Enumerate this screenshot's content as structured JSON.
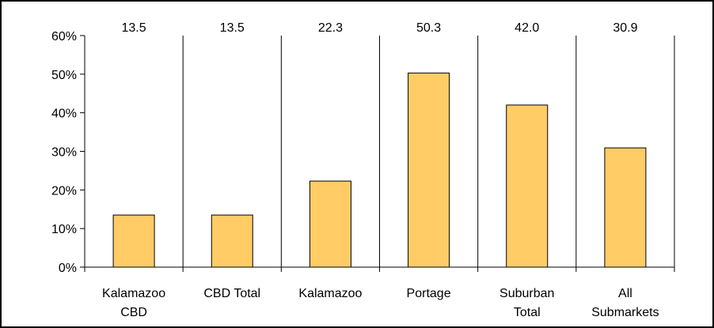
{
  "chart_data": {
    "type": "bar",
    "categories": [
      [
        "Kalamazoo",
        "CBD"
      ],
      [
        "CBD Total"
      ],
      [
        "Kalamazoo"
      ],
      [
        "Portage"
      ],
      [
        "Suburban",
        "Total"
      ],
      [
        "All",
        "Submarkets"
      ]
    ],
    "values": [
      13.5,
      13.5,
      22.3,
      50.3,
      42.0,
      30.9
    ],
    "value_labels": [
      "13.5",
      "13.5",
      "22.3",
      "50.3",
      "42.0",
      "30.9"
    ],
    "yticks": [
      "0%",
      "10%",
      "20%",
      "30%",
      "40%",
      "50%",
      "60%"
    ],
    "ylim": [
      0,
      60
    ],
    "ytick_step": 10,
    "title": "",
    "xlabel": "",
    "ylabel": "",
    "grid": false,
    "legend": "none",
    "colors": {
      "bar_fill": "#FFCC66",
      "bar_stroke": "#000000",
      "axis": "#000000",
      "frame": "#000000"
    }
  }
}
